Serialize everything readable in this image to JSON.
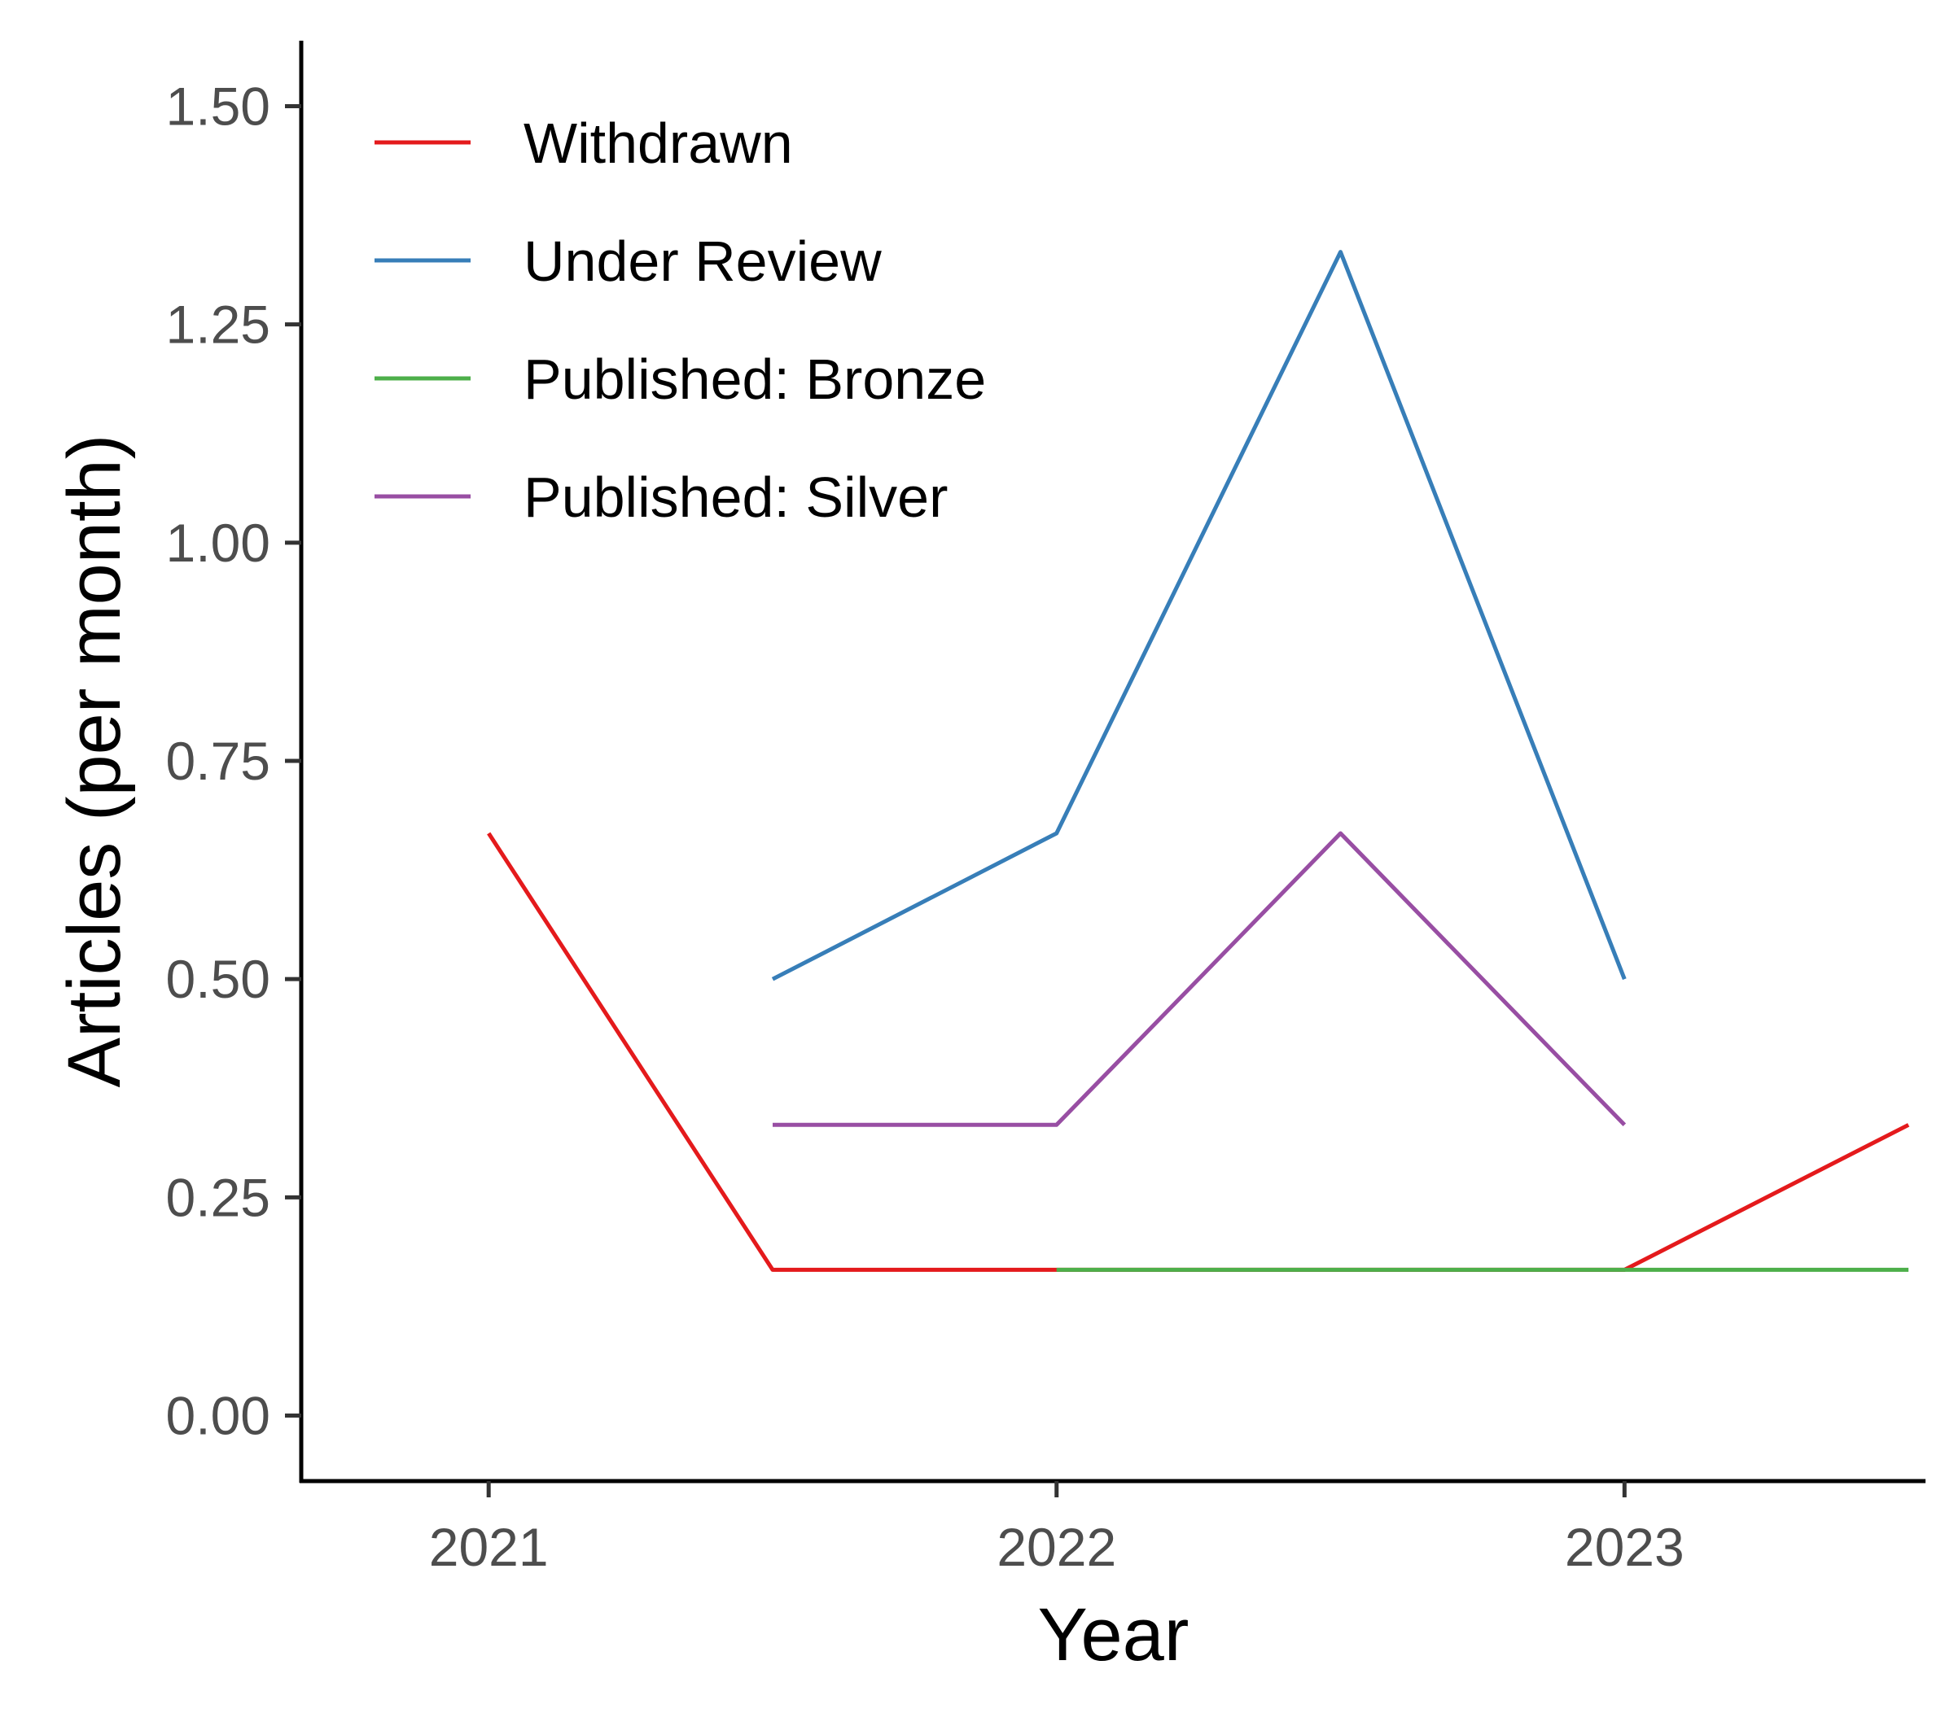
{
  "chart_data": {
    "type": "line",
    "title": "",
    "xlabel": "Year",
    "ylabel": "Articles (per month)",
    "xlim": [
      2020.67,
      2023.53
    ],
    "ylim": [
      -0.075,
      1.575
    ],
    "x_ticks": [
      2021,
      2022,
      2023
    ],
    "x_tick_labels": [
      "2021",
      "2022",
      "2023"
    ],
    "y_ticks": [
      0,
      0.25,
      0.5,
      0.75,
      1.0,
      1.25,
      1.5
    ],
    "y_tick_labels": [
      "0.00",
      "0.25",
      "0.50",
      "0.75",
      "1.00",
      "1.25",
      "1.50"
    ],
    "grid": false,
    "legend_position": "top-left",
    "series": [
      {
        "name": "Withdrawn",
        "color": "#e41a1c",
        "points": [
          [
            2021.0,
            0.667
          ],
          [
            2021.5,
            0.167
          ],
          [
            2022.0,
            0.167
          ],
          [
            2022.5,
            0.167
          ],
          [
            2023.0,
            0.167
          ],
          [
            2023.5,
            0.333
          ]
        ]
      },
      {
        "name": "Under Review",
        "color": "#377eb8",
        "points": [
          [
            2021.5,
            0.5
          ],
          [
            2022.0,
            0.667
          ],
          [
            2022.5,
            1.333
          ],
          [
            2023.0,
            0.5
          ]
        ]
      },
      {
        "name": "Published: Bronze",
        "color": "#4daf4a",
        "points": [
          [
            2022.0,
            0.167
          ],
          [
            2022.5,
            0.167
          ],
          [
            2023.0,
            0.167
          ],
          [
            2023.5,
            0.167
          ]
        ]
      },
      {
        "name": "Published: Silver",
        "color": "#984ea3",
        "points": [
          [
            2021.5,
            0.333
          ],
          [
            2022.0,
            0.333
          ],
          [
            2022.5,
            0.667
          ],
          [
            2023.0,
            0.333
          ]
        ]
      }
    ]
  }
}
